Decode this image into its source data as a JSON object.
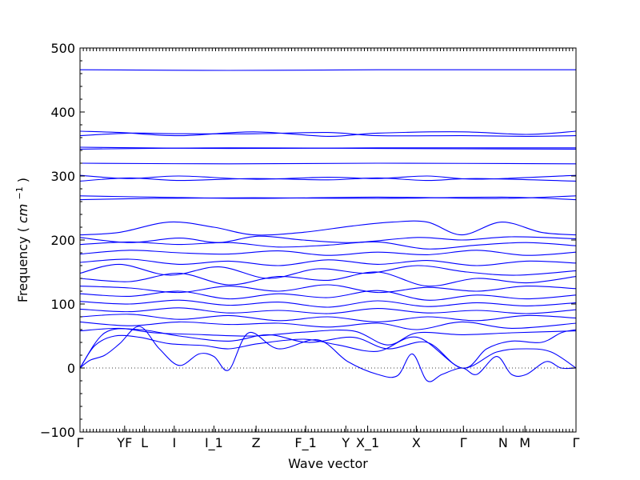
{
  "chart_data": {
    "type": "line",
    "xlabel": "Wave vector",
    "ylabel": "Frequency (cm^-1)",
    "ylabel_main": "Frequency",
    "ylabel_unit": "cm",
    "ylabel_exp": "−1",
    "ylim": [
      -100,
      500
    ],
    "y_ticks": [
      -100,
      0,
      100,
      200,
      300,
      400,
      500
    ],
    "y_tick_labels": [
      "−100",
      "0",
      "100",
      "200",
      "300",
      "400",
      "500"
    ],
    "zero_line": 0,
    "x_tick_labels": [
      {
        "label": "Γ",
        "x": 0.0
      },
      {
        "label": "YF",
        "x": 0.09
      },
      {
        "label": "L",
        "x": 0.13
      },
      {
        "label": "I",
        "x": 0.19
      },
      {
        "label": "I_1",
        "x": 0.27
      },
      {
        "label": "Z",
        "x": 0.355
      },
      {
        "label": "F_1",
        "x": 0.455
      },
      {
        "label": "Y",
        "x": 0.536
      },
      {
        "label": "X_1",
        "x": 0.58
      },
      {
        "label": "X",
        "x": 0.678
      },
      {
        "label": "Γ",
        "x": 0.773
      },
      {
        "label": "N",
        "x": 0.853
      },
      {
        "label": "M",
        "x": 0.897
      },
      {
        "label": "Γ",
        "x": 1.0
      }
    ],
    "series": [
      {
        "points": [
          [
            0,
            466
          ],
          [
            0.3,
            465
          ],
          [
            0.6,
            466
          ],
          [
            1,
            466
          ]
        ]
      },
      {
        "points": [
          [
            0,
            370
          ],
          [
            0.08,
            368
          ],
          [
            0.2,
            363
          ],
          [
            0.35,
            369
          ],
          [
            0.5,
            362
          ],
          [
            0.6,
            367
          ],
          [
            0.77,
            369
          ],
          [
            0.9,
            365
          ],
          [
            1,
            370
          ]
        ]
      },
      {
        "points": [
          [
            0,
            363
          ],
          [
            0.1,
            367
          ],
          [
            0.2,
            366
          ],
          [
            0.35,
            366
          ],
          [
            0.5,
            368
          ],
          [
            0.6,
            363
          ],
          [
            0.77,
            363
          ],
          [
            0.9,
            362
          ],
          [
            1,
            363
          ]
        ]
      },
      {
        "points": [
          [
            0,
            345
          ],
          [
            0.3,
            343
          ],
          [
            0.6,
            344
          ],
          [
            1,
            344
          ]
        ]
      },
      {
        "points": [
          [
            0,
            342
          ],
          [
            0.3,
            344
          ],
          [
            0.6,
            343
          ],
          [
            1,
            342
          ]
        ]
      },
      {
        "points": [
          [
            0,
            320
          ],
          [
            0.3,
            319
          ],
          [
            0.6,
            320
          ],
          [
            1,
            319
          ]
        ]
      },
      {
        "points": [
          [
            0,
            301
          ],
          [
            0.1,
            296
          ],
          [
            0.2,
            300
          ],
          [
            0.35,
            295
          ],
          [
            0.5,
            298
          ],
          [
            0.6,
            296
          ],
          [
            0.7,
            300
          ],
          [
            0.8,
            295
          ],
          [
            1,
            301
          ]
        ]
      },
      {
        "points": [
          [
            0,
            292
          ],
          [
            0.1,
            297
          ],
          [
            0.2,
            293
          ],
          [
            0.35,
            296
          ],
          [
            0.5,
            294
          ],
          [
            0.6,
            297
          ],
          [
            0.7,
            293
          ],
          [
            0.8,
            296
          ],
          [
            1,
            292
          ]
        ]
      },
      {
        "points": [
          [
            0,
            269
          ],
          [
            0.15,
            267
          ],
          [
            0.35,
            265
          ],
          [
            0.6,
            267
          ],
          [
            0.85,
            265
          ],
          [
            1,
            269
          ]
        ]
      },
      {
        "points": [
          [
            0,
            263
          ],
          [
            0.15,
            265
          ],
          [
            0.35,
            266
          ],
          [
            0.6,
            265
          ],
          [
            0.85,
            267
          ],
          [
            1,
            263
          ]
        ]
      },
      {
        "points": [
          [
            0,
            208
          ],
          [
            0.08,
            212
          ],
          [
            0.18,
            228
          ],
          [
            0.27,
            220
          ],
          [
            0.35,
            208
          ],
          [
            0.45,
            212
          ],
          [
            0.55,
            222
          ],
          [
            0.63,
            228
          ],
          [
            0.7,
            228
          ],
          [
            0.77,
            208
          ],
          [
            0.85,
            228
          ],
          [
            0.93,
            212
          ],
          [
            1,
            208
          ]
        ]
      },
      {
        "points": [
          [
            0,
            204
          ],
          [
            0.1,
            196
          ],
          [
            0.2,
            203
          ],
          [
            0.28,
            196
          ],
          [
            0.36,
            206
          ],
          [
            0.45,
            200
          ],
          [
            0.55,
            196
          ],
          [
            0.68,
            204
          ],
          [
            0.77,
            200
          ],
          [
            0.87,
            205
          ],
          [
            1,
            202
          ]
        ]
      },
      {
        "points": [
          [
            0,
            193
          ],
          [
            0.1,
            197
          ],
          [
            0.2,
            193
          ],
          [
            0.3,
            196
          ],
          [
            0.4,
            189
          ],
          [
            0.5,
            192
          ],
          [
            0.6,
            197
          ],
          [
            0.7,
            186
          ],
          [
            0.8,
            192
          ],
          [
            0.9,
            196
          ],
          [
            1,
            191
          ]
        ]
      },
      {
        "points": [
          [
            0,
            178
          ],
          [
            0.1,
            184
          ],
          [
            0.2,
            180
          ],
          [
            0.3,
            178
          ],
          [
            0.4,
            183
          ],
          [
            0.5,
            176
          ],
          [
            0.6,
            181
          ],
          [
            0.7,
            177
          ],
          [
            0.8,
            184
          ],
          [
            0.9,
            176
          ],
          [
            1,
            181
          ]
        ]
      },
      {
        "points": [
          [
            0,
            165
          ],
          [
            0.1,
            170
          ],
          [
            0.2,
            162
          ],
          [
            0.3,
            167
          ],
          [
            0.4,
            160
          ],
          [
            0.5,
            169
          ],
          [
            0.6,
            162
          ],
          [
            0.7,
            168
          ],
          [
            0.8,
            160
          ],
          [
            0.9,
            167
          ],
          [
            1,
            164
          ]
        ]
      },
      {
        "points": [
          [
            0,
            148
          ],
          [
            0.08,
            162
          ],
          [
            0.18,
            145
          ],
          [
            0.28,
            158
          ],
          [
            0.38,
            140
          ],
          [
            0.48,
            155
          ],
          [
            0.58,
            148
          ],
          [
            0.68,
            160
          ],
          [
            0.78,
            150
          ],
          [
            0.88,
            145
          ],
          [
            1,
            152
          ]
        ]
      },
      {
        "points": [
          [
            0,
            140
          ],
          [
            0.1,
            135
          ],
          [
            0.2,
            148
          ],
          [
            0.3,
            130
          ],
          [
            0.4,
            143
          ],
          [
            0.5,
            137
          ],
          [
            0.6,
            150
          ],
          [
            0.7,
            128
          ],
          [
            0.8,
            140
          ],
          [
            0.9,
            133
          ],
          [
            1,
            143
          ]
        ]
      },
      {
        "points": [
          [
            0,
            128
          ],
          [
            0.1,
            125
          ],
          [
            0.2,
            118
          ],
          [
            0.3,
            128
          ],
          [
            0.4,
            120
          ],
          [
            0.5,
            130
          ],
          [
            0.6,
            118
          ],
          [
            0.7,
            126
          ],
          [
            0.8,
            120
          ],
          [
            0.9,
            128
          ],
          [
            1,
            124
          ]
        ]
      },
      {
        "points": [
          [
            0,
            116
          ],
          [
            0.1,
            112
          ],
          [
            0.2,
            120
          ],
          [
            0.3,
            108
          ],
          [
            0.4,
            116
          ],
          [
            0.5,
            110
          ],
          [
            0.6,
            121
          ],
          [
            0.7,
            106
          ],
          [
            0.8,
            114
          ],
          [
            0.9,
            108
          ],
          [
            1,
            114
          ]
        ]
      },
      {
        "points": [
          [
            0,
            104
          ],
          [
            0.1,
            100
          ],
          [
            0.2,
            106
          ],
          [
            0.3,
            98
          ],
          [
            0.4,
            103
          ],
          [
            0.5,
            95
          ],
          [
            0.6,
            105
          ],
          [
            0.7,
            96
          ],
          [
            0.8,
            102
          ],
          [
            0.9,
            97
          ],
          [
            1,
            102
          ]
        ]
      },
      {
        "points": [
          [
            0,
            92
          ],
          [
            0.1,
            88
          ],
          [
            0.2,
            94
          ],
          [
            0.3,
            86
          ],
          [
            0.4,
            90
          ],
          [
            0.5,
            85
          ],
          [
            0.6,
            93
          ],
          [
            0.7,
            86
          ],
          [
            0.8,
            90
          ],
          [
            0.9,
            85
          ],
          [
            1,
            91
          ]
        ]
      },
      {
        "points": [
          [
            0,
            80
          ],
          [
            0.1,
            84
          ],
          [
            0.2,
            76
          ],
          [
            0.3,
            82
          ],
          [
            0.4,
            74
          ],
          [
            0.5,
            80
          ],
          [
            0.6,
            72
          ],
          [
            0.7,
            80
          ],
          [
            0.8,
            74
          ],
          [
            0.9,
            82
          ],
          [
            1,
            78
          ]
        ]
      },
      {
        "points": [
          [
            0,
            72
          ],
          [
            0.1,
            66
          ],
          [
            0.2,
            72
          ],
          [
            0.3,
            68
          ],
          [
            0.4,
            70
          ],
          [
            0.5,
            64
          ],
          [
            0.6,
            70
          ],
          [
            0.68,
            60
          ],
          [
            0.77,
            72
          ],
          [
            0.87,
            62
          ],
          [
            1,
            70
          ]
        ]
      },
      {
        "points": [
          [
            0,
            58
          ],
          [
            0.08,
            62
          ],
          [
            0.15,
            55
          ],
          [
            0.25,
            52
          ],
          [
            0.35,
            50
          ],
          [
            0.45,
            56
          ],
          [
            0.55,
            58
          ],
          [
            0.62,
            36
          ],
          [
            0.68,
            55
          ],
          [
            0.77,
            52
          ],
          [
            0.87,
            55
          ],
          [
            1,
            58
          ]
        ]
      },
      {
        "points": [
          [
            0,
            0
          ],
          [
            0.03,
            35
          ],
          [
            0.07,
            50
          ],
          [
            0.12,
            48
          ],
          [
            0.18,
            38
          ],
          [
            0.25,
            35
          ],
          [
            0.3,
            30
          ],
          [
            0.36,
            38
          ],
          [
            0.45,
            45
          ],
          [
            0.52,
            36
          ],
          [
            0.6,
            26
          ],
          [
            0.68,
            48
          ],
          [
            0.77,
            0
          ],
          [
            0.82,
            30
          ],
          [
            0.87,
            42
          ],
          [
            0.93,
            40
          ],
          [
            0.97,
            55
          ],
          [
            1,
            60
          ]
        ]
      },
      {
        "points": [
          [
            0,
            0
          ],
          [
            0.02,
            12
          ],
          [
            0.05,
            20
          ],
          [
            0.08,
            38
          ],
          [
            0.12,
            65
          ],
          [
            0.16,
            30
          ],
          [
            0.2,
            4
          ],
          [
            0.24,
            22
          ],
          [
            0.27,
            18
          ],
          [
            0.3,
            -3
          ],
          [
            0.34,
            55
          ],
          [
            0.4,
            30
          ],
          [
            0.48,
            44
          ],
          [
            0.54,
            10
          ],
          [
            0.6,
            -10
          ],
          [
            0.64,
            -12
          ],
          [
            0.67,
            22
          ],
          [
            0.7,
            -20
          ],
          [
            0.73,
            -10
          ],
          [
            0.77,
            0
          ],
          [
            0.8,
            -10
          ],
          [
            0.84,
            18
          ],
          [
            0.87,
            -10
          ],
          [
            0.9,
            -10
          ],
          [
            0.94,
            10
          ],
          [
            0.97,
            0
          ],
          [
            1,
            0
          ]
        ]
      },
      {
        "points": [
          [
            0,
            0
          ],
          [
            0.05,
            55
          ],
          [
            0.12,
            60
          ],
          [
            0.2,
            50
          ],
          [
            0.3,
            42
          ],
          [
            0.38,
            52
          ],
          [
            0.46,
            40
          ],
          [
            0.55,
            48
          ],
          [
            0.62,
            30
          ],
          [
            0.7,
            40
          ],
          [
            0.77,
            0
          ],
          [
            0.84,
            25
          ],
          [
            0.9,
            30
          ],
          [
            0.95,
            25
          ],
          [
            1,
            0
          ]
        ]
      }
    ]
  }
}
